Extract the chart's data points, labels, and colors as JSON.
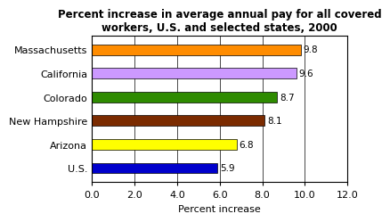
{
  "title": "Percent increase in average annual pay for all covered\nworkers, U.S. and selected states, 2000",
  "categories": [
    "Massachusetts",
    "California",
    "Colorado",
    "New Hampshire",
    "Arizona",
    "U.S."
  ],
  "values": [
    9.8,
    9.6,
    8.7,
    8.1,
    6.8,
    5.9
  ],
  "bar_colors": [
    "#FF8C00",
    "#CC99FF",
    "#2E8B00",
    "#7B2B00",
    "#FFFF00",
    "#0000CC"
  ],
  "xlabel": "Percent increase",
  "xlim": [
    0,
    12.0
  ],
  "xticks": [
    0.0,
    2.0,
    4.0,
    6.0,
    8.0,
    10.0,
    12.0
  ],
  "value_label_fontsize": 7.5,
  "ytick_fontsize": 8,
  "xtick_fontsize": 8,
  "xlabel_fontsize": 8,
  "title_fontsize": 8.5,
  "background_color": "#FFFFFF",
  "bar_edge_color": "#000000",
  "bar_height": 0.45
}
